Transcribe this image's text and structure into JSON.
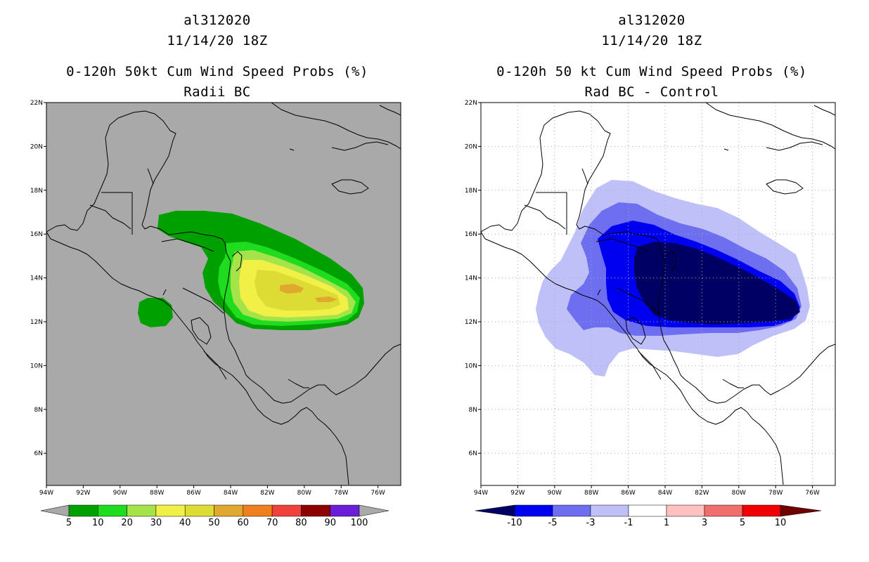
{
  "panels": [
    {
      "storm_id": "al312020",
      "datetime": "11/14/20 18Z",
      "product": "0-120h 50kt Cum Wind Speed Probs (%)",
      "subtitle": "Radii BC",
      "map_background": "#a9a9a9",
      "lon_ticks": [
        "94W",
        "92W",
        "90W",
        "88W",
        "86W",
        "84W",
        "82W",
        "80W",
        "78W",
        "76W"
      ],
      "lat_ticks": [
        "22N",
        "20N",
        "18N",
        "16N",
        "14N",
        "12N",
        "10N",
        "8N",
        "6N"
      ],
      "colorbar": {
        "colors": [
          "#a9a9a9",
          "#00a000",
          "#1fdc1f",
          "#a6e34b",
          "#f0f046",
          "#dcdc35",
          "#e0a82e",
          "#f07f1f",
          "#f0413c",
          "#8c0000",
          "#6a1fd6",
          "#a9a9a9"
        ],
        "labels": [
          "5",
          "10",
          "20",
          "30",
          "40",
          "50",
          "60",
          "70",
          "80",
          "90",
          "100"
        ]
      }
    },
    {
      "storm_id": "al312020",
      "datetime": "11/14/20 18Z",
      "product": "0-120h 50 kt Cum Wind Speed Probs (%)",
      "subtitle": "Rad BC - Control",
      "map_background": "#ffffff",
      "lon_ticks": [
        "94W",
        "92W",
        "90W",
        "88W",
        "86W",
        "84W",
        "82W",
        "80W",
        "78W",
        "76W"
      ],
      "lat_ticks": [
        "22N",
        "20N",
        "18N",
        "16N",
        "14N",
        "12N",
        "10N",
        "8N",
        "6N"
      ],
      "colorbar": {
        "colors": [
          "#000064",
          "#0000f0",
          "#6e6ef0",
          "#c0c0f8",
          "#ffffff",
          "#ffc0c0",
          "#f06e6e",
          "#f00000",
          "#6e0000"
        ],
        "labels": [
          "-10",
          "-5",
          "-3",
          "-1",
          "1",
          "3",
          "5",
          "10"
        ]
      }
    }
  ],
  "probability_contours": {
    "units": "%",
    "left_levels": [
      5,
      10,
      20,
      30,
      40,
      50,
      60
    ],
    "right_levels": [
      -1,
      -3,
      -5,
      -10
    ]
  }
}
